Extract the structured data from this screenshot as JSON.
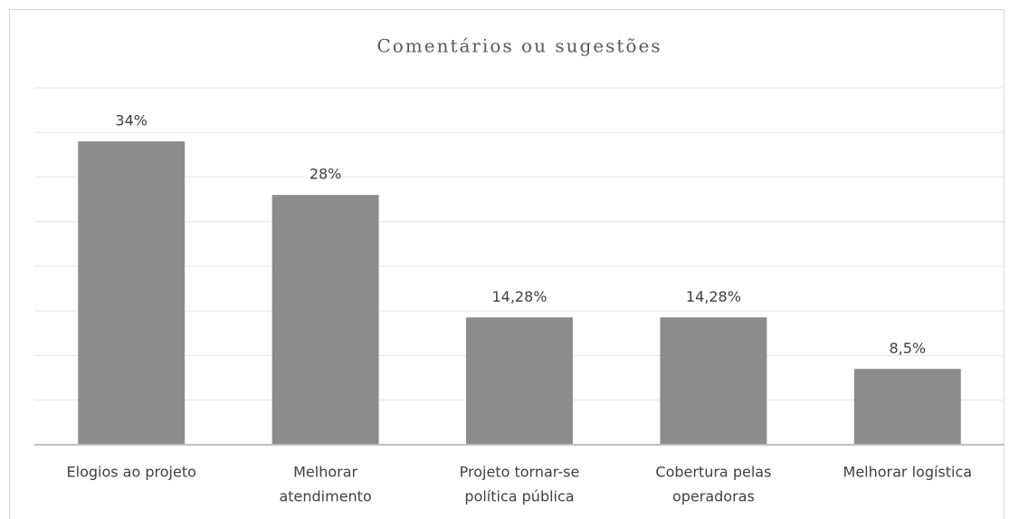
{
  "chart_data": {
    "type": "bar",
    "title": "Comentários ou sugestões",
    "categories": [
      [
        "Elogios ao projeto"
      ],
      [
        "Melhorar",
        "atendimento"
      ],
      [
        "Projeto tornar-se",
        "política pública"
      ],
      [
        "Cobertura pelas",
        "operadoras"
      ],
      [
        "Melhorar logística"
      ]
    ],
    "values": [
      34,
      28,
      14.28,
      14.28,
      8.5
    ],
    "value_labels": [
      "34%",
      "28%",
      "14,28%",
      "14,28%",
      "8,5%"
    ],
    "color": "#8c8c8c",
    "ylim": [
      0,
      40
    ],
    "yticks": [
      0,
      5,
      10,
      15,
      20,
      25,
      30,
      35,
      40
    ],
    "grid": true
  }
}
